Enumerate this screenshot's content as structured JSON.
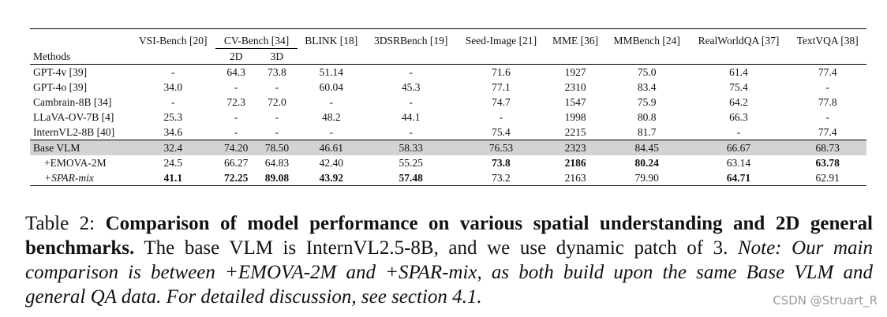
{
  "columns": {
    "methods": "Methods",
    "vsi": "VSI-Bench [20]",
    "cvbench": "CV-Bench  [34]",
    "cv2d": "2D",
    "cv3d": "3D",
    "blink": "BLINK [18]",
    "dsr": "3DSRBench [19]",
    "seed": "Seed-Image [21]",
    "mme": "MME [36]",
    "mmbench": "MMBench [24]",
    "rwqa": "RealWorldQA [37]",
    "textvqa": "TextVQA [38]"
  },
  "rows": [
    {
      "method": "GPT-4v [39]",
      "vals": [
        "-",
        "64.3",
        "73.8",
        "51.14",
        "-",
        "71.6",
        "1927",
        "75.0",
        "61.4",
        "77.4"
      ]
    },
    {
      "method": "GPT-4o [39]",
      "vals": [
        "34.0",
        "-",
        "-",
        "60.04",
        "45.3",
        "77.1",
        "2310",
        "83.4",
        "75.4",
        "-"
      ]
    },
    {
      "method": "Cambrain-8B [34]",
      "vals": [
        "-",
        "72.3",
        "72.0",
        "-",
        "-",
        "74.7",
        "1547",
        "75.9",
        "64.2",
        "77.8"
      ]
    },
    {
      "method": "LLaVA-OV-7B [4]",
      "vals": [
        "25.3",
        "-",
        "-",
        "48.2",
        "44.1",
        "-",
        "1998",
        "80.8",
        "66.3",
        "-"
      ]
    },
    {
      "method": "InternVL2-8B [40]",
      "vals": [
        "34.6",
        "-",
        "-",
        "-",
        "-",
        "75.4",
        "2215",
        "81.7",
        "-",
        "77.4"
      ]
    },
    {
      "method": "Base VLM",
      "vals": [
        "32.4",
        "74.20",
        "78.50",
        "46.61",
        "58.33",
        "76.53",
        "2323",
        "84.45",
        "66.67",
        "68.73"
      ]
    },
    {
      "method": "+EMOVA-2M",
      "vals": [
        "24.5",
        "66.27",
        "64.83",
        "42.40",
        "55.25",
        "73.8",
        "2186",
        "80.24",
        "63.14",
        "63.78"
      ]
    },
    {
      "method": "+SPAR-mix",
      "vals": [
        "41.1",
        "72.25",
        "89.08",
        "43.92",
        "57.48",
        "73.2",
        "2163",
        "79.90",
        "64.71",
        "62.91"
      ]
    }
  ],
  "caption": {
    "prefix": "Table 2: ",
    "bold": "Comparison of model performance on various spatial understanding and 2D general benchmarks.",
    "normal": " The base VLM is InternVL2.5-8B, and we use dynamic patch of 3. ",
    "italic": "Note: Our main comparison is between +EMOVA-2M and +SPAR-mix, as both build upon the same Base VLM and general QA data. For detailed discussion, see section 4.1."
  },
  "watermark": "CSDN @Struart_R"
}
